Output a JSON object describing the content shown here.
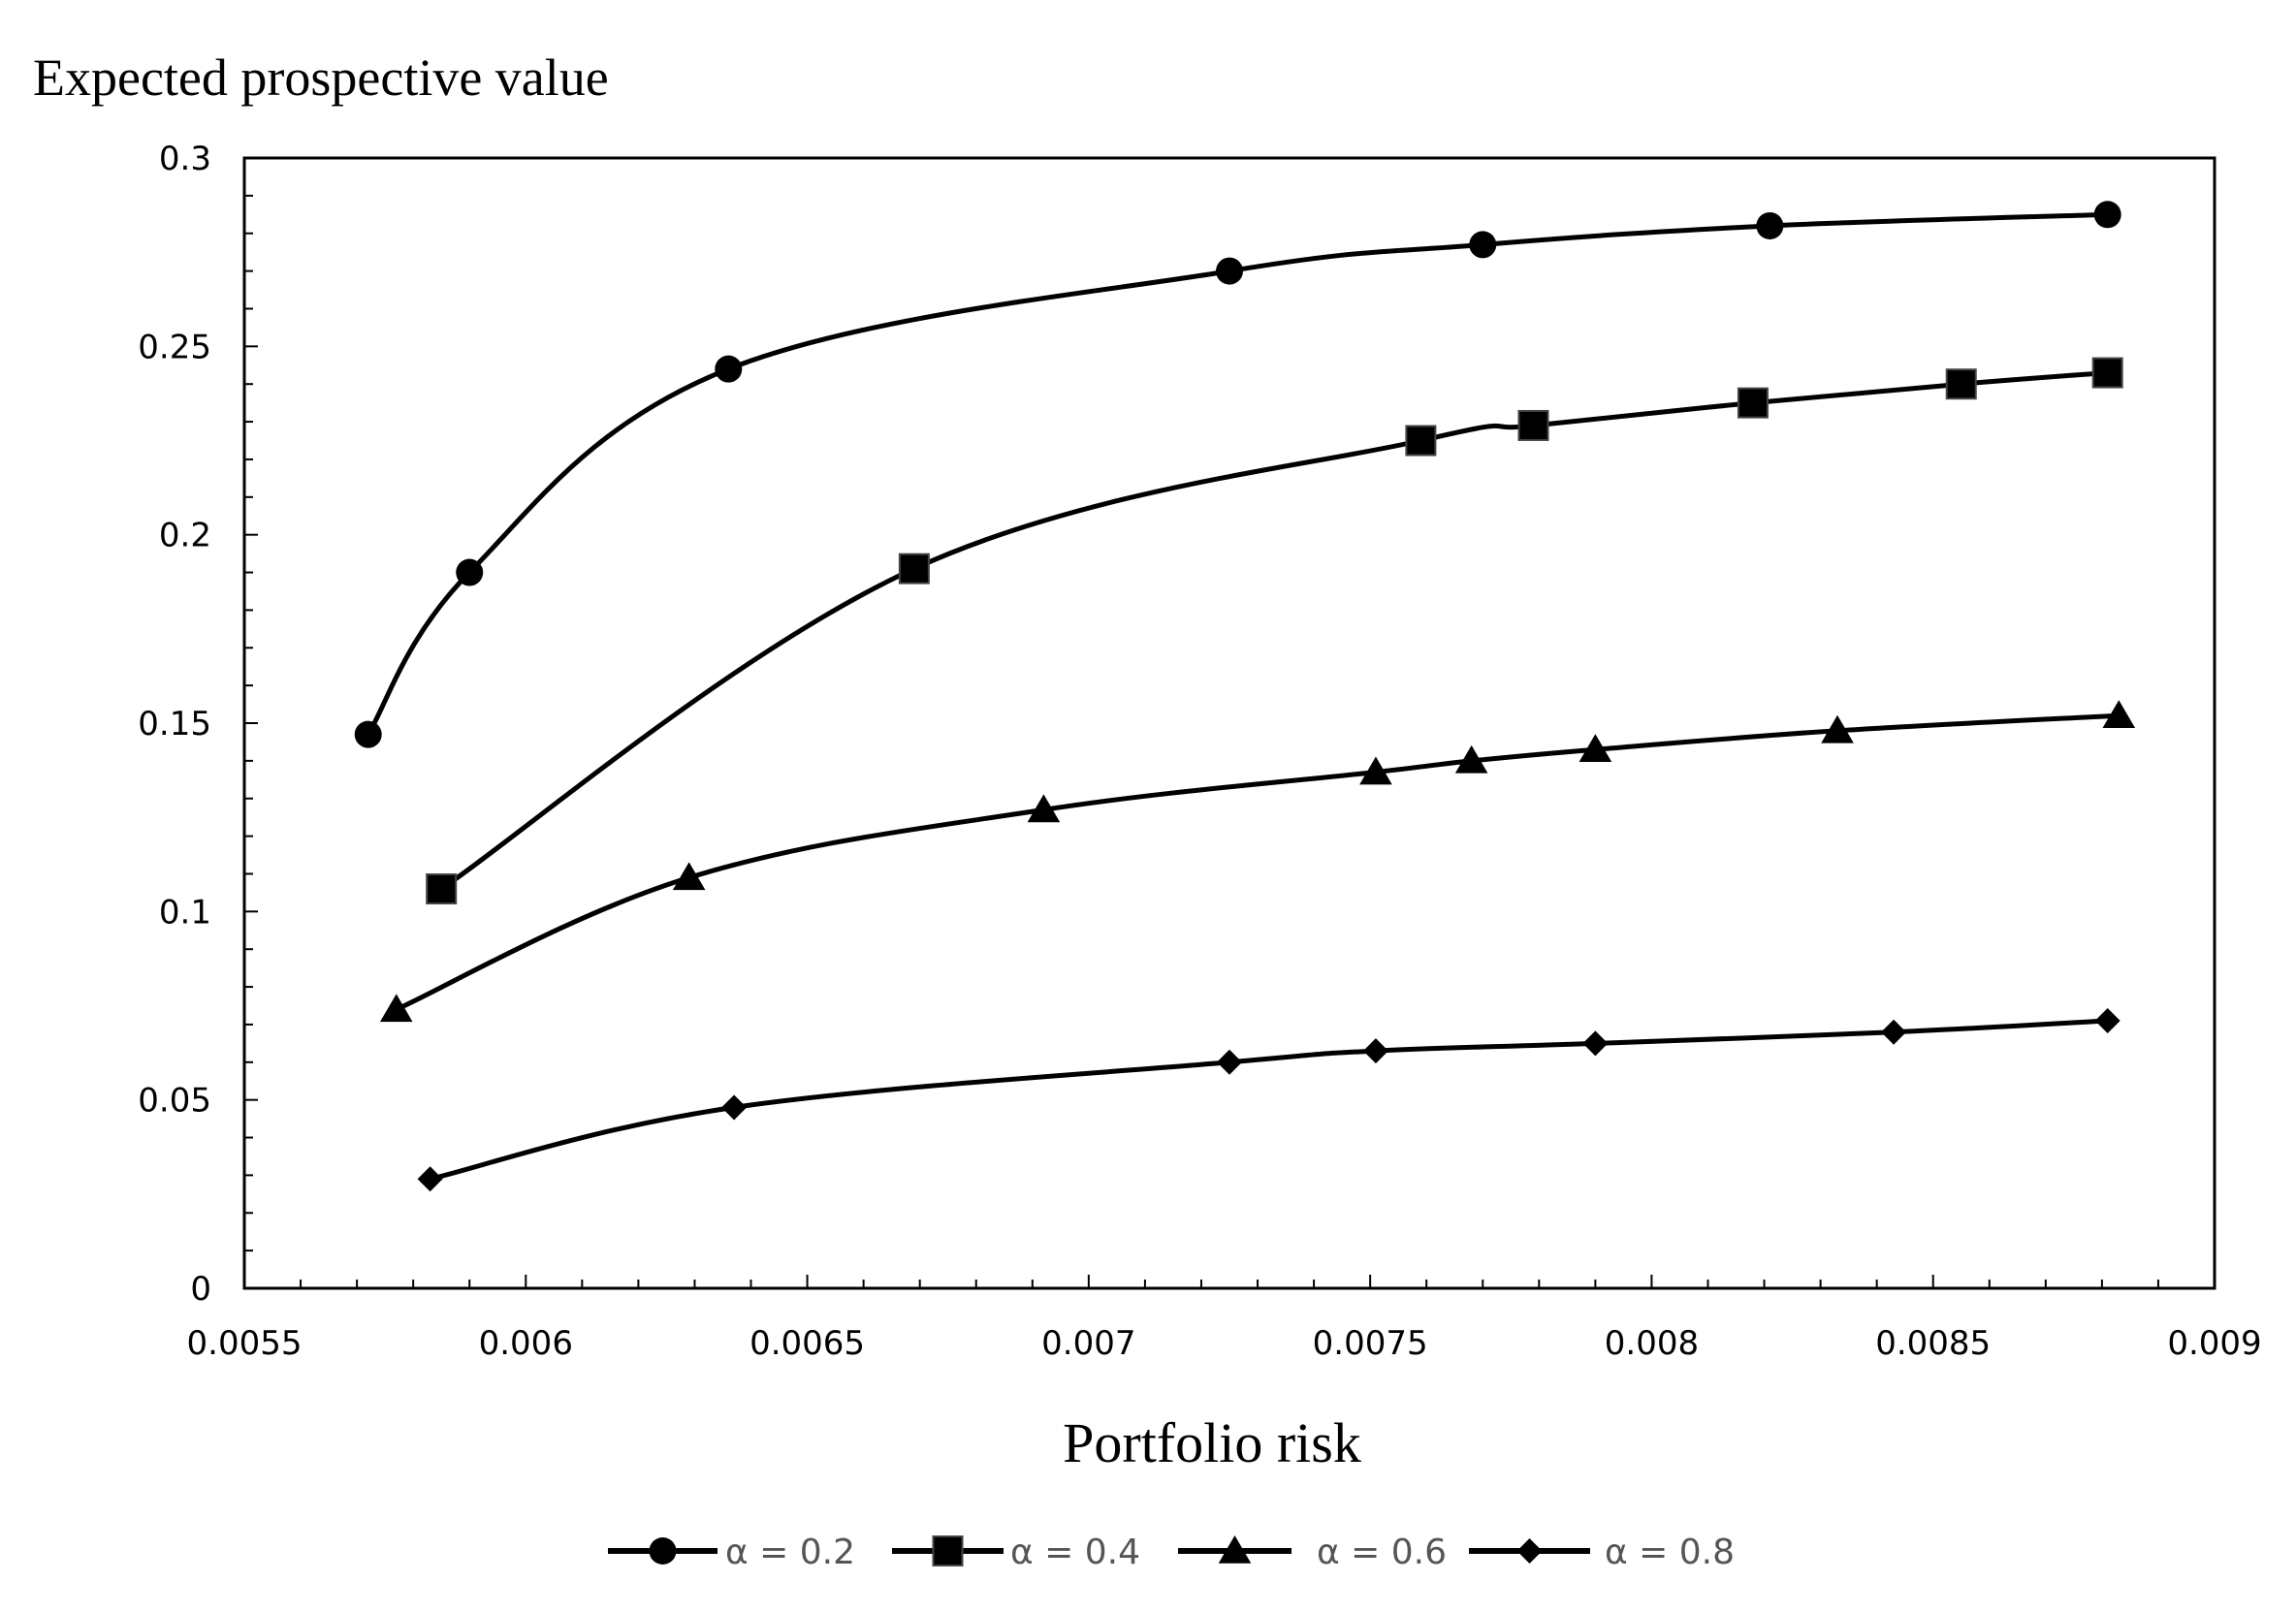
{
  "chart_data": {
    "type": "line",
    "ylabel": "Expected prospective value",
    "xlabel": "Portfolio risk",
    "xlim": [
      0.0055,
      0.009
    ],
    "ylim": [
      0,
      0.3
    ],
    "x_ticks": [
      "0.0055",
      "0.006",
      "0.0065",
      "0.007",
      "0.0075",
      "0.008",
      "0.0085",
      "0.009"
    ],
    "y_ticks": [
      "0",
      "0.05",
      "0.1",
      "0.15",
      "0.2",
      "0.25",
      "0.3"
    ],
    "legend_position": "bottom",
    "grid": false,
    "series": [
      {
        "name": "α = 0.2",
        "marker": "circle",
        "points": [
          [
            0.00572,
            0.147
          ],
          [
            0.0059,
            0.19
          ],
          [
            0.00636,
            0.244
          ],
          [
            0.00725,
            0.27
          ],
          [
            0.0077,
            0.277
          ],
          [
            0.00821,
            0.282
          ],
          [
            0.00881,
            0.285
          ]
        ]
      },
      {
        "name": "α = 0.4",
        "marker": "square",
        "points": [
          [
            0.00585,
            0.106
          ],
          [
            0.00669,
            0.191
          ],
          [
            0.00759,
            0.225
          ],
          [
            0.00779,
            0.229
          ],
          [
            0.00818,
            0.235
          ],
          [
            0.00855,
            0.24
          ],
          [
            0.00881,
            0.243
          ]
        ]
      },
      {
        "name": "α = 0.6",
        "marker": "triangle",
        "points": [
          [
            0.00577,
            0.074
          ],
          [
            0.00629,
            0.109
          ],
          [
            0.00692,
            0.127
          ],
          [
            0.00751,
            0.137
          ],
          [
            0.00768,
            0.14
          ],
          [
            0.0079,
            0.143
          ],
          [
            0.00833,
            0.148
          ],
          [
            0.00883,
            0.152
          ]
        ]
      },
      {
        "name": "α = 0.8",
        "marker": "diamond",
        "points": [
          [
            0.00583,
            0.029
          ],
          [
            0.00637,
            0.048
          ],
          [
            0.00725,
            0.06
          ],
          [
            0.00751,
            0.063
          ],
          [
            0.0079,
            0.065
          ],
          [
            0.00843,
            0.068
          ],
          [
            0.00881,
            0.071
          ]
        ]
      }
    ]
  }
}
